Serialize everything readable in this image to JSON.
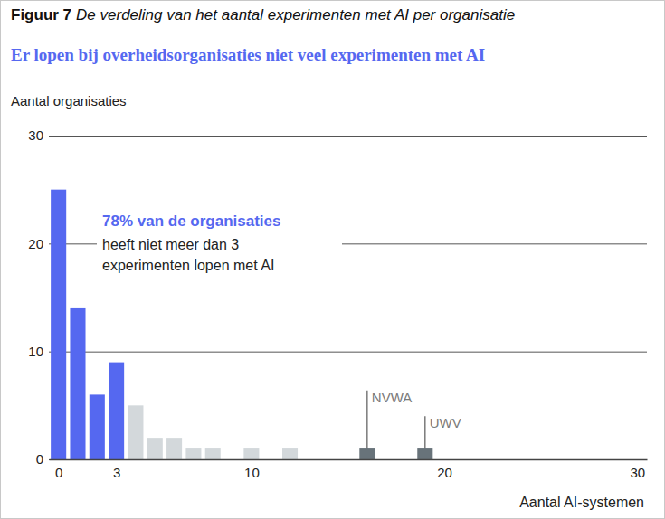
{
  "chart_data": {
    "type": "bar",
    "figure_label": "Figuur 7",
    "title": "De verdeling van het aantal experimenten met AI per organisatie",
    "subtitle": "Er lopen bij overheidsorganisaties niet veel experimenten met AI",
    "y_label": "Aantal organisaties",
    "x_label": "Aantal AI-systemen",
    "x": [
      0,
      1,
      2,
      3,
      4,
      5,
      6,
      7,
      8,
      10,
      12,
      16,
      19
    ],
    "values": [
      25,
      14,
      6,
      9,
      5,
      2,
      2,
      1,
      1,
      1,
      1,
      1,
      1
    ],
    "colors": [
      "#5568f0",
      "#5568f0",
      "#5568f0",
      "#5568f0",
      "#d3d8db",
      "#d3d8db",
      "#d3d8db",
      "#d3d8db",
      "#d3d8db",
      "#d3d8db",
      "#d3d8db",
      "#68737a",
      "#68737a"
    ],
    "xlim": [
      -0.5,
      30.5
    ],
    "xticks": [
      0,
      3,
      10,
      20,
      30
    ],
    "ylim": [
      0,
      30
    ],
    "yticks": [
      0,
      10,
      20,
      30
    ],
    "grid": true,
    "callout": {
      "highlight": "78% van de organisaties",
      "lines": [
        "heeft niet meer dan 3",
        "experimenten lopen met AI"
      ]
    },
    "annotations": [
      {
        "text": "NVWA",
        "x": 16,
        "y": 6.4
      },
      {
        "text": "UWV",
        "x": 19,
        "y": 4
      }
    ]
  }
}
